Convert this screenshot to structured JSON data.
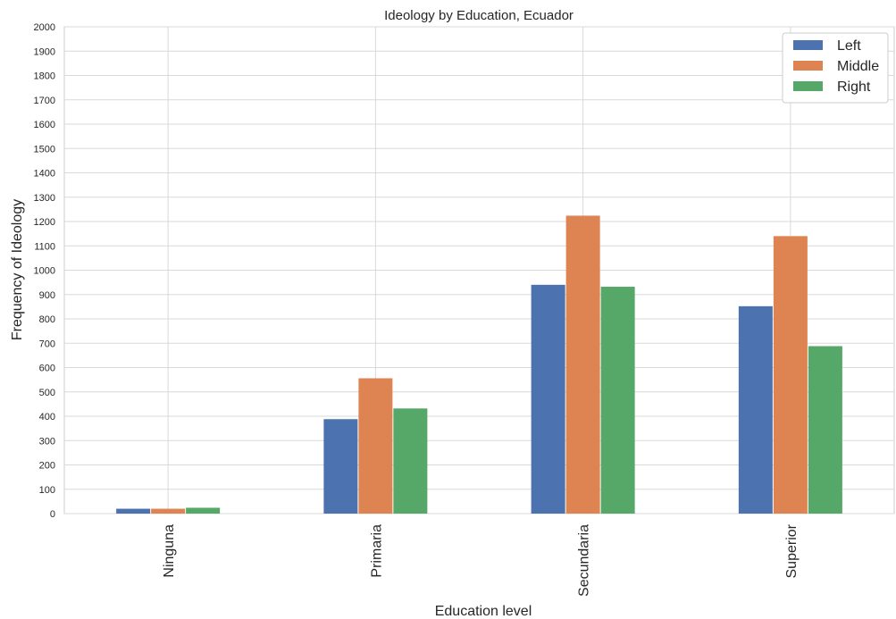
{
  "chart_data": {
    "type": "bar",
    "title": "Ideology by Education, Ecuador",
    "xlabel": "Education level",
    "ylabel": "Frequency of Ideology",
    "categories": [
      "Ninguna",
      "Primaria",
      "Secundaria",
      "Superior"
    ],
    "series": [
      {
        "name": "Left",
        "color": "#4c72b0",
        "values": [
          20,
          388,
          940,
          852
        ]
      },
      {
        "name": "Middle",
        "color": "#dd8452",
        "values": [
          20,
          556,
          1224,
          1140
        ]
      },
      {
        "name": "Right",
        "color": "#55a868",
        "values": [
          24,
          432,
          932,
          688
        ]
      }
    ],
    "ylim": [
      0,
      2000
    ],
    "yticks": [
      "0",
      "100",
      "200",
      "300",
      "400",
      "500",
      "600",
      "700",
      "800",
      "900",
      "1000",
      "1100",
      "1200",
      "1300",
      "1400",
      "1500",
      "1600",
      "1700",
      "1800",
      "1900",
      "2000"
    ],
    "grid": true,
    "legend_position": "top-right"
  }
}
